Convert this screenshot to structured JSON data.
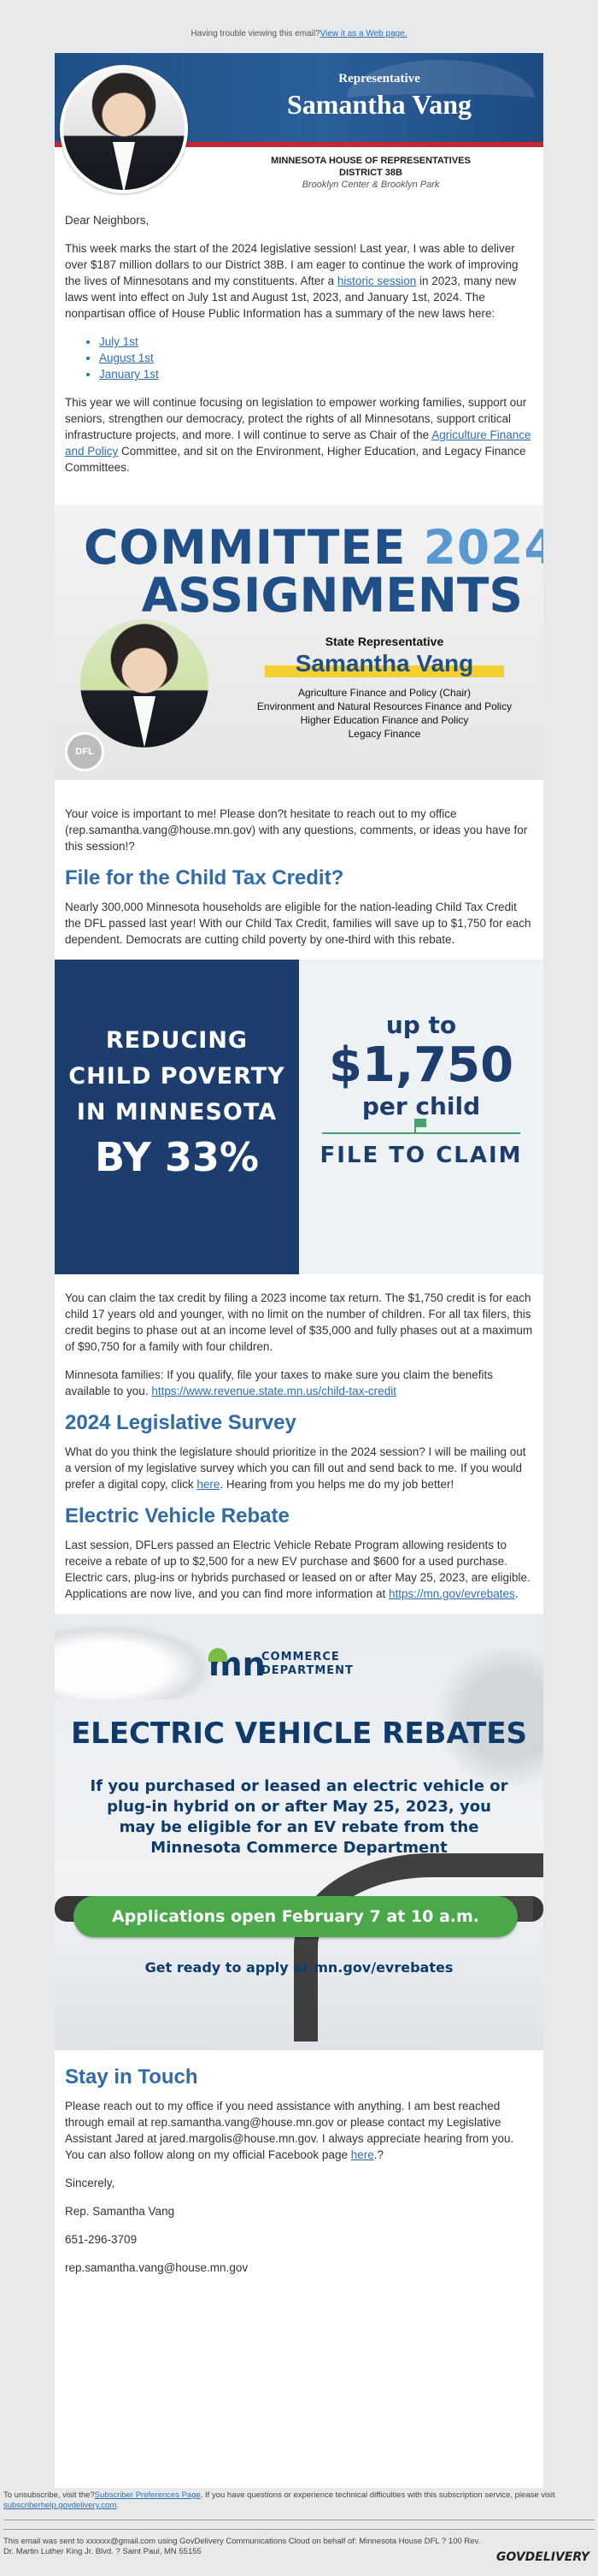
{
  "preheader": {
    "text": "Having trouble viewing this email?",
    "link": "View it as a Web page."
  },
  "header": {
    "role": "Representative",
    "name": "Samantha Vang",
    "office_line1": "MINNESOTA HOUSE OF REPRESENTATIVES",
    "office_line2": "DISTRICT 38B",
    "office_line3": "Brooklyn Center & Brooklyn Park"
  },
  "intro": {
    "greeting": "Dear Neighbors,",
    "p1_a": "This week marks the start of the 2024 legislative session! Last year, I was able to deliver over $187 million dollars to our District 38B. I am eager to continue the work of improving the lives of Minnesotans and my constituents. After a ",
    "p1_link": "historic session",
    "p1_b": " in 2023, many new laws went into effect on July 1st and August 1st, 2023, and January 1st, 2024. The nonpartisan office of House Public Information has a summary of the new laws here:",
    "bullets": [
      "July 1st",
      "August 1st",
      "January 1st"
    ],
    "p2_a": "This year we will continue focusing on legislation to empower working families, support our seniors, strengthen our democracy, protect the rights of all Minnesotans, support critical infrastructure projects, and more. I will continue to serve as Chair of the ",
    "p2_link": "Agriculture Finance and Policy",
    "p2_b": " Committee, and sit on the Environment, Higher Education, and Legacy Finance Committees."
  },
  "committee_img": {
    "line1": "COMMITTEE",
    "year": "2024",
    "line2": "ASSIGNMENTS",
    "badge": "DFL",
    "state_rep": "State Representative",
    "name": "Samantha Vang",
    "committees": [
      "Agriculture Finance and Policy (Chair)",
      "Environment and Natural Resources Finance and Policy",
      "Higher Education Finance and Policy",
      "Legacy Finance"
    ]
  },
  "voice": "Your voice is important to me! Please don?t hesitate to reach out to my office (rep.samantha.vang@house.mn.gov) with any questions, comments, or ideas you have for this session!?",
  "ctc": {
    "heading": "File for the Child Tax Credit?",
    "p1": "Nearly 300,000 Minnesota households are eligible for the nation-leading Child Tax Credit the DFL passed last year! With our Child Tax Credit, families will save up to $1,750 for each dependent. Democrats are cutting child poverty by one-third with this rebate.",
    "img_l1": "REDUCING",
    "img_l2": "CHILD POVERTY",
    "img_l3": "IN MINNESOTA",
    "img_big": "BY 33%",
    "img_up": "up to",
    "img_amt": "$1,750",
    "img_per": "per child",
    "img_claim": "FILE TO CLAIM",
    "p2": "You can claim the tax credit by filing a 2023 income tax return. The $1,750 credit is for each child 17 years old and younger, with no limit on the number of children. For all tax filers, this credit begins to phase out at an income level of $35,000 and fully phases out at a maximum of $90,750 for a family with four children.",
    "p3_a": "Minnesota families: If you qualify, file your taxes to make sure you claim the benefits available to you. ",
    "p3_link": "https://www.revenue.state.mn.us/child-tax-credit"
  },
  "survey": {
    "heading": "2024 Legislative Survey",
    "p_a": "What do you think the legislature should prioritize in the 2024 session? I will be mailing out a version of my legislative survey which you can fill out and send back to me. If you would prefer a digital copy, click ",
    "p_link": "here",
    "p_b": ". Hearing from you helps me do my job better!"
  },
  "ev": {
    "heading": "Electric Vehicle Rebate",
    "p_a": "Last session, DFLers passed an Electric Vehicle Rebate Program allowing residents to receive a rebate of up to $2,500 for a new EV purchase and $600 for a used purchase. Electric cars, plug-ins or hybrids purchased or leased on or after May 25, 2023, are eligible. Applications are now live, and you can find more information at ",
    "p_link": "https://mn.gov/evrebates",
    "p_b": ".",
    "img_logo_mn": "mn",
    "img_logo_dept1": "COMMERCE",
    "img_logo_dept2": "DEPARTMENT",
    "img_title": "ELECTRIC VEHICLE REBATES",
    "img_sub": "If you purchased or leased an electric vehicle or plug-in hybrid on or after May 25, 2023, you may be eligible for an EV rebate from the Minnesota Commerce Department",
    "img_pill": "Applications open February 7 at 10 a.m.",
    "img_ready": "Get ready to apply at mn.gov/evrebates"
  },
  "stay": {
    "heading": "Stay in Touch",
    "p_a": "Please reach out to my office if you need assistance with anything. I am best reached through email at rep.samantha.vang@house.mn.gov or please contact my Legislative Assistant Jared at jared.margolis@house.mn.gov. I always appreciate hearing from you. You can also follow along on my official Facebook page ",
    "p_link": "here",
    "p_b": ".?",
    "closing": "Sincerely,",
    "sig": "Rep. Samantha Vang",
    "phone": "651-296-3709",
    "email": "rep.samantha.vang@house.mn.gov"
  },
  "footer": {
    "unsub_a": "To unsubscribe, visit the?",
    "unsub_link1": "Subscriber Preferences Page",
    "unsub_b": ". If you have questions or experience technical difficulties with this subscription service, please visit ",
    "unsub_link2": "subscriberhelp.govdelivery.com",
    "unsub_c": ".",
    "sent": "This email was sent to xxxxxx@gmail.com using GovDelivery Communications Cloud on behalf of: Minnesota House DFL ? 100 Rev. Dr. Martin Luther King Jr. Blvd. ? Saint Paul, MN 55155",
    "brand": "GOVDELIVERY"
  }
}
